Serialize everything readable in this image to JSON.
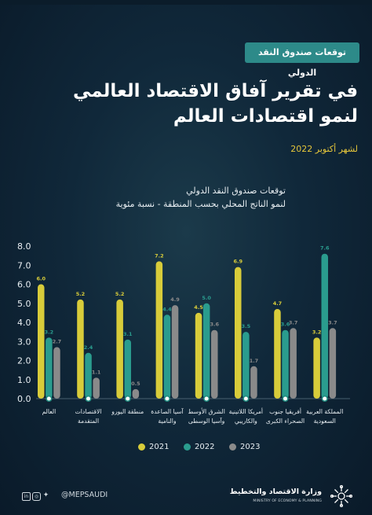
{
  "header": {
    "tag": "توقعات صندوق النقد الدولي",
    "title_line1": "في تقرير آفاق الاقتصاد العالمي",
    "title_line2": "لنمو اقتصادات العالم",
    "date": "لشهر أكتوبر 2022"
  },
  "chart_data": {
    "type": "bar",
    "title": "توقعات صندوق النقد الدولي",
    "subtitle": "لنمو الناتج المحلي بحسب المنطقة - نسبة مئوية",
    "categories": [
      [
        "العالم"
      ],
      [
        "الاقتصادات",
        "المتقدمة"
      ],
      [
        "منطقة اليورو"
      ],
      [
        "آسيا الصاعدة",
        "والنامية"
      ],
      [
        "الشرق الأوسط",
        "وآسيا الوسطى"
      ],
      [
        "أمريكا اللاتينية",
        "والكاريبي"
      ],
      [
        "أفريقيا جنوب",
        "الصحراء الكبرى"
      ],
      [
        "المملكة العربية",
        "السعودية"
      ]
    ],
    "series": [
      {
        "name": "2021",
        "color": "#d8cc3a",
        "values": [
          6.0,
          5.2,
          5.2,
          7.2,
          4.5,
          6.9,
          4.7,
          3.2
        ]
      },
      {
        "name": "2022",
        "color": "#2a9c8e",
        "values": [
          3.2,
          2.4,
          3.1,
          4.4,
          5.0,
          3.5,
          3.6,
          7.6
        ]
      },
      {
        "name": "2023",
        "color": "#8a8a8a",
        "values": [
          2.7,
          1.1,
          0.5,
          4.9,
          3.6,
          1.7,
          3.7,
          3.7
        ]
      }
    ],
    "ylim": [
      0,
      8
    ],
    "yticks": [
      "0.0",
      "1.0",
      "2.0",
      "3.0",
      "4.0",
      "5.0",
      "6.0",
      "7.0",
      "8.0"
    ],
    "grid": false,
    "legend": "bottom-center"
  },
  "footer": {
    "handle": "@MEPSAUDI",
    "ministry_ar": "وزارة الاقتصاد والتخطيط",
    "ministry_en": "MINISTRY OF ECONOMY & PLANNING"
  }
}
